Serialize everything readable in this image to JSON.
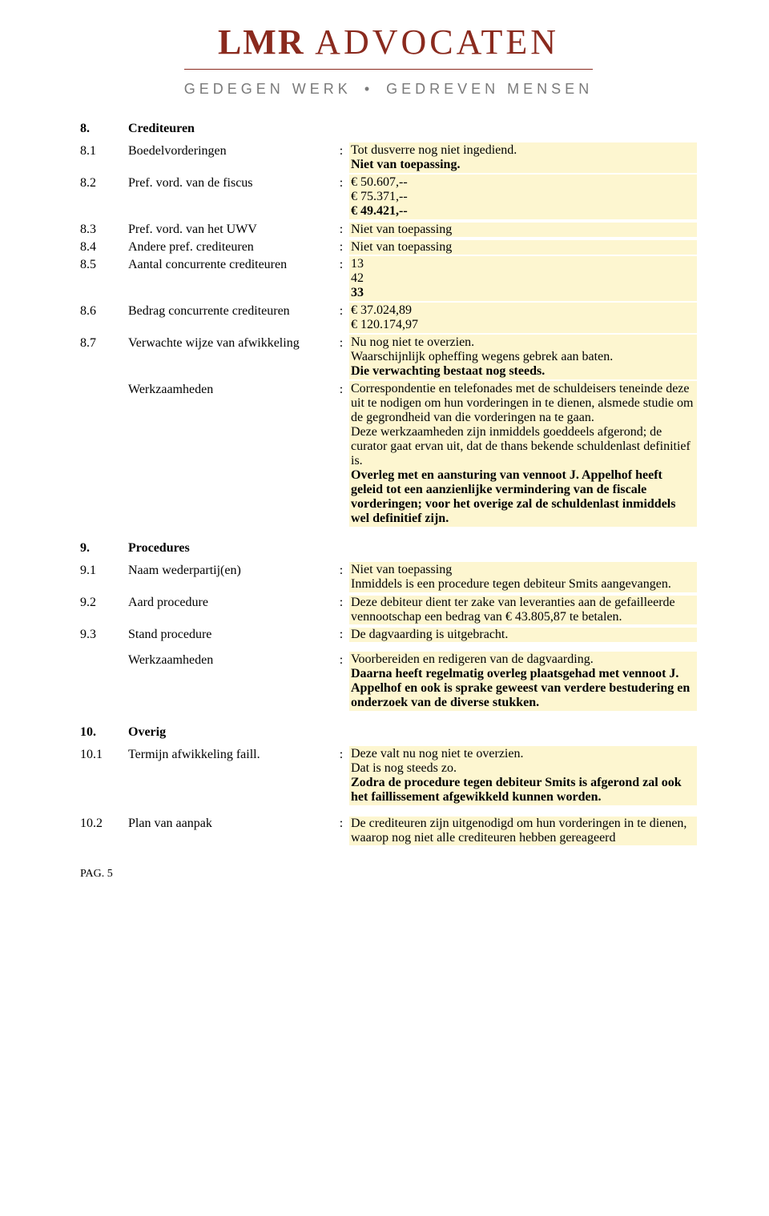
{
  "logo": {
    "main_prefix": "LMR",
    "main_rest": " ADVOCATEN",
    "sub_left": "GEDEGEN WERK",
    "sub_right": "GEDREVEN MENSEN",
    "main_color": "#8a2a1e",
    "sub_color": "#7a7a7a"
  },
  "highlight_color": "#fdf6d0",
  "sec8": {
    "num": "8.",
    "title": "Crediteuren",
    "rows": {
      "r1": {
        "num": "8.1",
        "label": "Boedelvorderingen",
        "val1": "Tot dusverre nog niet ingediend.",
        "val2": "Niet van toepassing."
      },
      "r2": {
        "num": "8.2",
        "label": "Pref. vord. van de fiscus",
        "val1": "€ 50.607,--",
        "val2": "€ 75.371,--",
        "val3": "€ 49.421,--"
      },
      "r3": {
        "num": "8.3",
        "label": "Pref. vord. van het UWV",
        "val": "Niet van toepassing"
      },
      "r4": {
        "num": "8.4",
        "label": "Andere pref. crediteuren",
        "val": "Niet van toepassing"
      },
      "r5": {
        "num": "8.5",
        "label": "Aantal concurrente crediteuren",
        "val1": "13",
        "val2": "42",
        "val3": "33"
      },
      "r6": {
        "num": "8.6",
        "label": "Bedrag concurrente crediteuren",
        "val1": "€ 37.024,89",
        "val2": "€ 120.174,97"
      },
      "r7": {
        "num": "8.7",
        "label": "Verwachte wijze van afwikkeling",
        "val1": "Nu nog niet te overzien.",
        "val2": "Waarschijnlijk opheffing wegens gebrek aan baten.",
        "val3": "Die verwachting bestaat nog steeds."
      },
      "werk": {
        "label": "Werkzaamheden",
        "p1": "Correspondentie en telefonades met de schuldeisers teneinde deze uit te nodigen om hun vorderingen in te dienen, alsmede studie om de gegrondheid van die vorderingen na te gaan.",
        "p2": "Deze werkzaamheden zijn inmiddels goeddeels afgerond; de curator gaat ervan uit, dat de thans bekende schuldenlast definitief is.",
        "p3": "Overleg met en aansturing van vennoot J. Appelhof heeft geleid tot een aanzienlijke vermindering van de fiscale vorderingen; voor het overige zal de schuldenlast inmiddels wel definitief zijn."
      }
    }
  },
  "sec9": {
    "num": "9.",
    "title": "Procedures",
    "rows": {
      "r1": {
        "num": "9.1",
        "label": "Naam wederpartij(en)",
        "val1": "Niet van toepassing",
        "val2": "Inmiddels is een procedure tegen debiteur Smits aangevangen."
      },
      "r2": {
        "num": "9.2",
        "label": "Aard procedure",
        "val": "Deze debiteur dient ter zake van leveranties  aan de gefailleerde vennootschap een bedrag van € 43.805,87 te betalen."
      },
      "r3": {
        "num": "9.3",
        "label": "Stand procedure",
        "val": "De dagvaarding is uitgebracht."
      },
      "werk": {
        "label": "Werkzaamheden",
        "p1": "Voorbereiden en redigeren van de dagvaarding.",
        "p2": "Daarna heeft regelmatig overleg plaatsgehad met vennoot J. Appelhof en ook is sprake geweest van verdere bestudering en onderzoek van de diverse stukken."
      }
    }
  },
  "sec10": {
    "num": "10.",
    "title": "Overig",
    "rows": {
      "r1": {
        "num": "10.1",
        "label": "Termijn afwikkeling faill.",
        "val1": "Deze valt nu nog niet te overzien.",
        "val2": "Dat is nog steeds zo.",
        "val3": "Zodra de procedure tegen debiteur Smits is afgerond zal ook het faillissement afgewikkeld kunnen worden."
      },
      "r2": {
        "num": "10.2",
        "label": "Plan van aanpak",
        "val": "De crediteuren zijn uitgenodigd om hun vorderingen in te dienen, waarop nog niet alle crediteuren hebben gereageerd"
      }
    }
  },
  "footer": "PAG. 5"
}
